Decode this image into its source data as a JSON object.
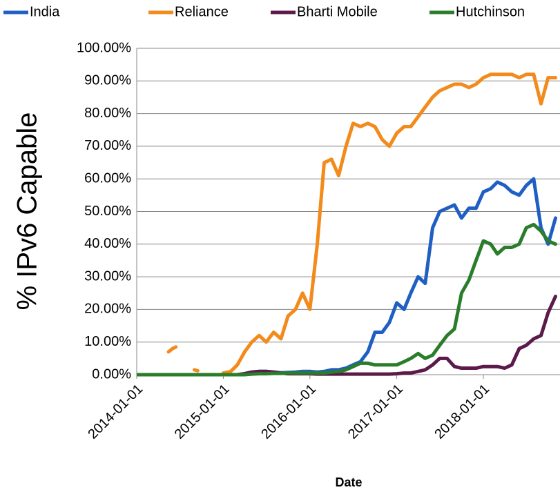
{
  "chart_data": {
    "type": "line",
    "ylabel": "% IPv6 Capable",
    "xlabel": "Date",
    "legend": "top",
    "x": [
      "2014-01-01",
      "2014-02-01",
      "2014-03-01",
      "2014-04-01",
      "2014-05-01",
      "2014-05-15",
      "2014-06-01",
      "2014-06-15",
      "2014-07-01",
      "2014-08-01",
      "2014-09-01",
      "2014-09-15",
      "2014-10-01",
      "2014-11-01",
      "2014-12-01",
      "2015-01-01",
      "2015-02-01",
      "2015-03-01",
      "2015-04-01",
      "2015-05-01",
      "2015-06-01",
      "2015-07-01",
      "2015-08-01",
      "2015-09-01",
      "2015-10-01",
      "2015-11-01",
      "2015-12-01",
      "2016-01-01",
      "2016-02-01",
      "2016-03-01",
      "2016-04-01",
      "2016-05-01",
      "2016-06-01",
      "2016-07-01",
      "2016-08-01",
      "2016-09-01",
      "2016-10-01",
      "2016-11-01",
      "2016-12-01",
      "2017-01-01",
      "2017-02-01",
      "2017-03-01",
      "2017-04-01",
      "2017-05-01",
      "2017-06-01",
      "2017-07-01",
      "2017-08-01",
      "2017-09-01",
      "2017-10-01",
      "2017-11-01",
      "2017-12-01",
      "2018-01-01",
      "2018-02-01",
      "2018-03-01",
      "2018-04-01",
      "2018-05-01",
      "2018-06-01",
      "2018-07-01",
      "2018-08-01",
      "2018-09-01",
      "2018-10-01",
      "2018-11-01"
    ],
    "series": [
      {
        "name": "India",
        "color": "#1f5fc4",
        "values": [
          0,
          0,
          0,
          0,
          0,
          0,
          0,
          0,
          0,
          0,
          0,
          0,
          0,
          0,
          0,
          0,
          0,
          0,
          0.3,
          0.8,
          1,
          1,
          0.8,
          0.6,
          0.7,
          0.8,
          1,
          1,
          0.8,
          1,
          1.5,
          1.5,
          2,
          3,
          4,
          7,
          13,
          13,
          16,
          22,
          20,
          25,
          30,
          28,
          45,
          50,
          51,
          52,
          48,
          51,
          51,
          56,
          57,
          59,
          58,
          56,
          55,
          58,
          60,
          45,
          40,
          48
        ]
      },
      {
        "name": "Reliance",
        "color": "#f28a1c",
        "values": [
          null,
          null,
          null,
          null,
          null,
          7,
          8,
          8.5,
          null,
          null,
          1.5,
          1.2,
          null,
          null,
          null,
          0.5,
          1,
          3,
          7,
          10,
          12,
          10,
          13,
          11,
          18,
          20,
          25,
          20,
          40,
          65,
          66,
          61,
          70,
          77,
          76,
          77,
          76,
          72,
          70,
          74,
          76,
          76,
          79,
          82,
          85,
          87,
          88,
          89,
          89,
          88,
          89,
          91,
          92,
          92,
          92,
          92,
          91,
          92,
          92,
          83,
          91,
          91
        ]
      },
      {
        "name": "Bharti Mobile",
        "color": "#5b1a4a",
        "values": [
          0,
          0,
          0,
          0,
          0,
          0,
          0,
          0,
          0,
          0,
          0,
          0,
          0,
          0,
          0,
          0,
          0,
          0,
          0.3,
          0.8,
          1,
          1,
          0.8,
          0.5,
          0.3,
          0.3,
          0.3,
          0.3,
          0.2,
          0.2,
          0.2,
          0.2,
          0.2,
          0.2,
          0.2,
          0.2,
          0.2,
          0.2,
          0.2,
          0.3,
          0.5,
          0.5,
          1,
          1.5,
          3,
          5,
          5,
          2.5,
          2,
          2,
          2,
          2.5,
          2.5,
          2.5,
          2,
          3,
          8,
          9,
          11,
          12,
          19,
          24
        ]
      },
      {
        "name": "Hutchinson",
        "color": "#2a7d2a",
        "values": [
          0,
          0,
          0,
          0,
          0,
          0,
          0,
          0,
          0,
          0,
          0,
          0,
          0,
          0,
          0,
          0,
          0,
          0,
          0,
          0.2,
          0.3,
          0.3,
          0.4,
          0.4,
          0.5,
          0.5,
          0.5,
          0.5,
          0.5,
          0.5,
          0.8,
          1,
          1.5,
          2.5,
          3.5,
          3.5,
          3,
          3,
          3,
          3,
          4,
          5,
          6.5,
          5,
          6,
          9,
          12,
          14,
          25,
          29,
          35,
          41,
          40,
          37,
          39,
          39,
          40,
          45,
          46,
          44,
          41,
          40
        ]
      }
    ],
    "xlim": [
      "2014-01-01",
      "2018-11-20"
    ],
    "xticks": [
      "2014-01-01",
      "2015-01-01",
      "2016-01-01",
      "2017-01-01",
      "2018-01-01"
    ],
    "ylim": [
      0,
      100
    ],
    "yticks": [
      {
        "value": 0,
        "label": "0.00%"
      },
      {
        "value": 10,
        "label": "10.00%"
      },
      {
        "value": 20,
        "label": "20.00%"
      },
      {
        "value": 30,
        "label": "30.00%"
      },
      {
        "value": 40,
        "label": "40.00%"
      },
      {
        "value": 50,
        "label": "50.00%"
      },
      {
        "value": 60,
        "label": "60.00%"
      },
      {
        "value": 70,
        "label": "70.00%"
      },
      {
        "value": 80,
        "label": "80.00%"
      },
      {
        "value": 90,
        "label": "90.00%"
      },
      {
        "value": 100,
        "label": "100.00%"
      }
    ],
    "grid": true
  }
}
